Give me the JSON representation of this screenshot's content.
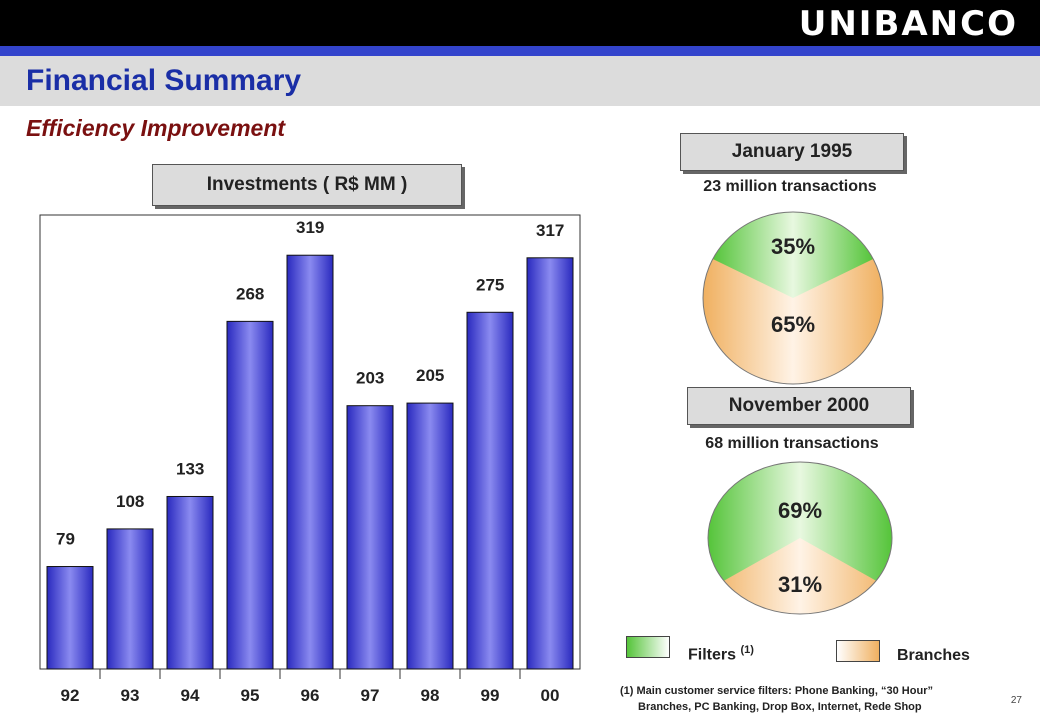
{
  "brand": {
    "logo_text": "UNIBANCO"
  },
  "header": {
    "title": "Financial Summary",
    "subtitle": "Efficiency Improvement"
  },
  "chart_data": {
    "type": "bar",
    "title": "Investments ( R$ MM )",
    "categories": [
      "92",
      "93",
      "94",
      "95",
      "96",
      "97",
      "98",
      "99",
      "00"
    ],
    "values": [
      79,
      108,
      133,
      268,
      319,
      203,
      205,
      275,
      317
    ],
    "xlabel": "",
    "ylabel": "",
    "ylim": [
      0,
      350
    ],
    "grid": false
  },
  "pies": [
    {
      "header": "January 1995",
      "caption": "23 million transactions",
      "slices": [
        {
          "label": "35%",
          "value": 35,
          "legend": "Filters"
        },
        {
          "label": "65%",
          "value": 65,
          "legend": "Branches"
        }
      ]
    },
    {
      "header": "November 2000",
      "caption": "68 million transactions",
      "slices": [
        {
          "label": "69%",
          "value": 69,
          "legend": "Filters"
        },
        {
          "label": "31%",
          "value": 31,
          "legend": "Branches"
        }
      ]
    }
  ],
  "legend": {
    "filters_label": "Filters",
    "filters_note": "(1)",
    "branches_label": "Branches"
  },
  "footnote": {
    "line1": "(1) Main customer service filters: Phone Banking, “30 Hour”",
    "line2": "Branches, PC Banking, Drop Box, Internet, Rede Shop"
  },
  "page_number": "27",
  "colors": {
    "header_bar": "#000000",
    "accent_blue": "#3344cc",
    "title_blue": "#1a2ea6",
    "subtitle_red": "#7a1010",
    "bar_fill": "#4a4ad8",
    "filters_green": "#55c43a",
    "branches_orange": "#f0b060"
  }
}
